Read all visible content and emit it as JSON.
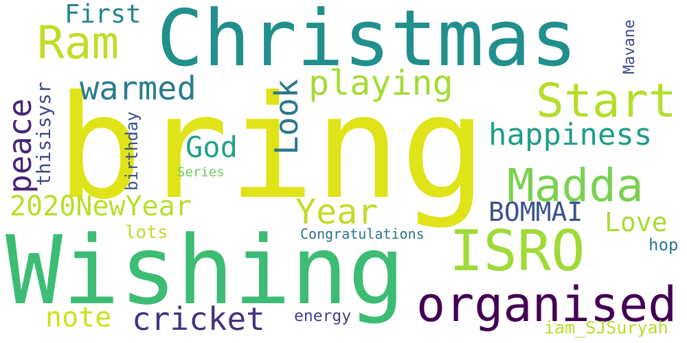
{
  "words": {
    "bring": {
      "text": "bring",
      "color": "#dfe318"
    },
    "christmas": {
      "text": "Christmas",
      "color": "#21908d"
    },
    "wishing": {
      "text": "Wishing",
      "color": "#3dbc74"
    },
    "isro": {
      "text": "ISRO",
      "color": "#a0da39"
    },
    "organised": {
      "text": "organised",
      "color": "#440154"
    },
    "madda": {
      "text": "Madda",
      "color": "#7ad151"
    },
    "start": {
      "text": "Start",
      "color": "#b5de2b"
    },
    "ram": {
      "text": "Ram",
      "color": "#bddf26"
    },
    "happiness": {
      "text": "happiness",
      "color": "#1f9e89"
    },
    "playing": {
      "text": "playing",
      "color": "#a5db36"
    },
    "warmed": {
      "text": "warmed",
      "color": "#287d8e"
    },
    "peace": {
      "text": "peace",
      "color": "#482475"
    },
    "look": {
      "text": "Look",
      "color": "#2a788e"
    },
    "god": {
      "text": "God",
      "color": "#1fa187"
    },
    "first": {
      "text": "First",
      "color": "#25858e"
    },
    "newyear2020": {
      "text": "2020NewYear",
      "color": "#b8de29"
    },
    "year": {
      "text": "Year",
      "color": "#bddf26"
    },
    "love": {
      "text": "Love",
      "color": "#a8db34"
    },
    "bommai": {
      "text": "BOMMAI",
      "color": "#3b528b"
    },
    "cricket": {
      "text": "cricket",
      "color": "#46337e"
    },
    "note": {
      "text": "note",
      "color": "#d0e11c"
    },
    "congratulations": {
      "text": "Congratulations",
      "color": "#2c728e"
    },
    "lots": {
      "text": "lots",
      "color": "#b5de2b"
    },
    "energy": {
      "text": "energy",
      "color": "#433e85"
    },
    "iam_sjsuryah": {
      "text": "iam_SJSuryah",
      "color": "#b5de2b"
    },
    "hop": {
      "text": "hop",
      "color": "#2a788e"
    },
    "series": {
      "text": "Series",
      "color": "#6ccd5a"
    },
    "thisisysr": {
      "text": "thisisysr",
      "color": "#3e4989"
    },
    "birthday": {
      "text": "birthday",
      "color": "#3b528b"
    },
    "mavane": {
      "text": "Mavane",
      "color": "#3e4989"
    }
  }
}
